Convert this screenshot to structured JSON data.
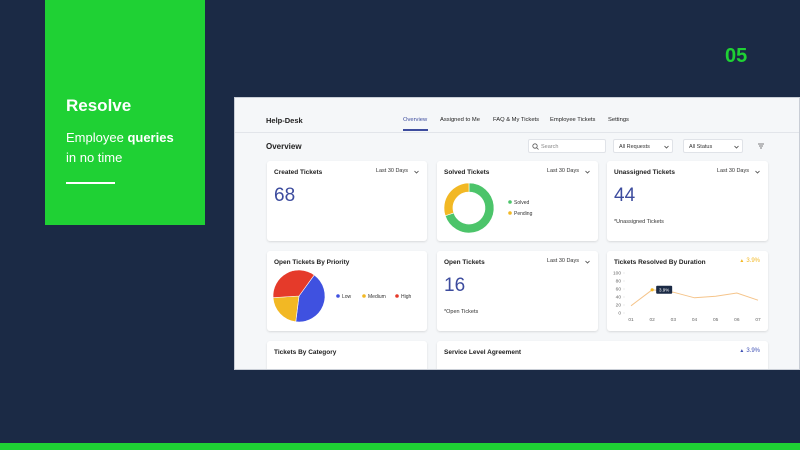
{
  "slide": {
    "number": "05",
    "heading": "Resolve",
    "tagline_plain": "Employee",
    "tagline_bold": "queries",
    "tagline_rest": "in no time"
  },
  "app": {
    "title": "Help-Desk",
    "tabs": [
      "Overview",
      "Assigned to Me",
      "FAQ & My Tickets",
      "Employee Tickets",
      "Settings"
    ],
    "active_tab": "Overview",
    "page_title": "Overview",
    "search_placeholder": "Search",
    "filters": [
      "All Requests",
      "All Status"
    ]
  },
  "cards": [
    {
      "title": "Created Tickets",
      "period": "Last 30 Days",
      "value": "68"
    },
    {
      "title": "Solved Tickets",
      "period": "Last 30 Days",
      "chart": {
        "type": "donut",
        "labels": [
          "Solved",
          "Pending"
        ],
        "values": [
          70,
          30
        ],
        "colors": [
          "#4cc46a",
          "#f2b824"
        ]
      }
    },
    {
      "title": "Unassigned Tickets",
      "period": "Last 30 Days",
      "value": "44",
      "note": "*Unassigned Tickets"
    },
    {
      "title": "Open Tickets By Priority",
      "chart": {
        "type": "pie",
        "labels": [
          "Low",
          "Medium",
          "High"
        ],
        "values": [
          42,
          22,
          36
        ],
        "colors": [
          "#3f51e0",
          "#f2b824",
          "#e53a2a"
        ]
      }
    },
    {
      "title": "Open Tickets",
      "period": "Last 30 Days",
      "value": "16",
      "note": "*Open Tickets"
    },
    {
      "title": "Tickets Resolved By Duration",
      "badge": "3.9%",
      "badge_color": "#f2b824",
      "chart": {
        "type": "line",
        "categories": [
          "01",
          "02",
          "03",
          "04",
          "05",
          "06",
          "07"
        ],
        "values": [
          18,
          58,
          52,
          38,
          42,
          50,
          32
        ],
        "color": "#f5c48a",
        "ylim": [
          0,
          100
        ],
        "yticks": [
          0,
          20,
          40,
          60,
          80,
          100
        ],
        "tooltip": {
          "category": "02",
          "label": "3.9%"
        }
      }
    },
    {
      "title": "Tickets By Category"
    },
    {
      "title": "Service Level Agreement",
      "badge": "3.9%",
      "badge_color": "#3f51b5"
    }
  ]
}
